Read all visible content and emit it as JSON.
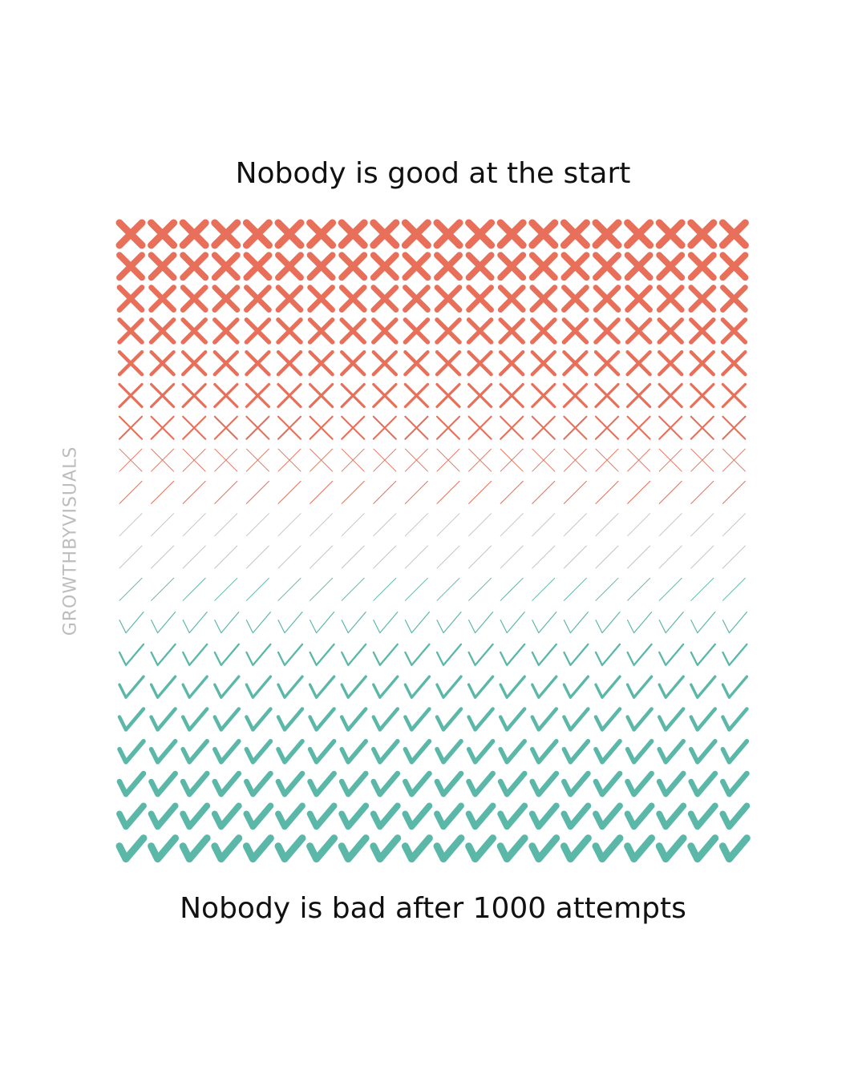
{
  "header": {
    "title": "Nobody is good at the start"
  },
  "footer": {
    "caption": "Nobody is bad after 1000 attempts"
  },
  "watermark": "GROWTHBYVISUALS"
}
